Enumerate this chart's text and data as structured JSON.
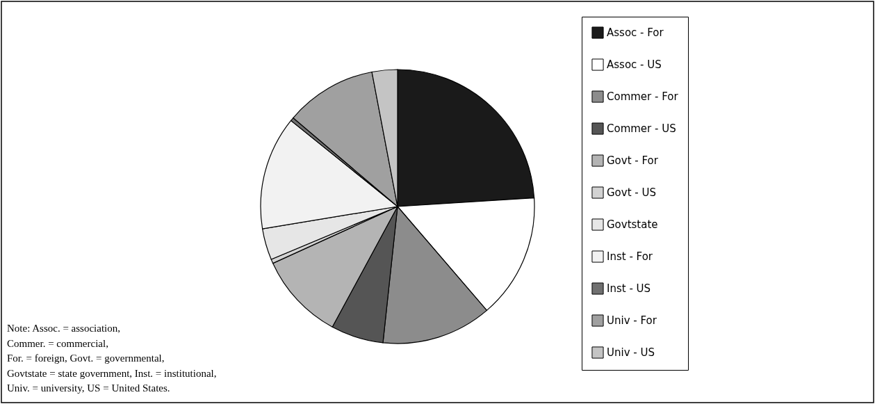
{
  "chart_data": {
    "type": "pie",
    "categories": [
      "Assoc - For",
      "Assoc - US",
      "Commer - For",
      "Commer - US",
      "Govt - For",
      "Govt - US",
      "Govtstate",
      "Inst - For",
      "Inst - US",
      "Univ - For",
      "Univ - US"
    ],
    "values": [
      24.0,
      14.7,
      13.0,
      6.2,
      10.3,
      0.5,
      3.7,
      13.4,
      0.4,
      10.8,
      3.0
    ],
    "colors": [
      "#1a1a1a",
      "#ffffff",
      "#8c8c8c",
      "#555555",
      "#b4b4b4",
      "#d2d2d2",
      "#e6e6e6",
      "#f2f2f2",
      "#707070",
      "#a0a0a0",
      "#c4c4c4"
    ],
    "legend": "right",
    "annotations": [
      "Note:  Assoc. = association,",
      "Commer. = commercial,",
      "For. = foreign,   Govt. = governmental,",
      "Govtstate = state government,   Inst. = institutional,",
      "Univ. = university,   US = United States."
    ]
  }
}
